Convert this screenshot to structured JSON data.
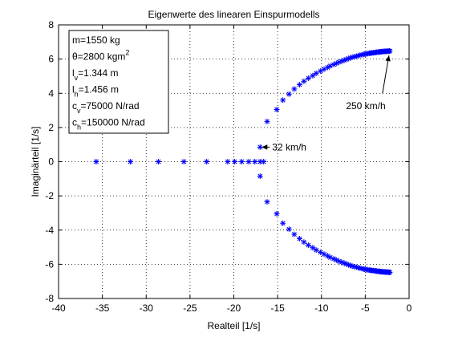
{
  "chart_data": {
    "type": "scatter",
    "title": "Eigenwerte des linearen Einspurmodells",
    "xlabel": "Realteil [1/s]",
    "ylabel": "Imaginärteil [1/s]",
    "xlim": [
      -40,
      0
    ],
    "ylim": [
      -8,
      8
    ],
    "xticks": [
      -40,
      -35,
      -30,
      -25,
      -20,
      -15,
      -10,
      -5,
      0
    ],
    "yticks": [
      -8,
      -6,
      -4,
      -2,
      0,
      2,
      4,
      6,
      8
    ],
    "grid": true,
    "marker": "*",
    "marker_color": "#0000ff",
    "real_eigenvalues_x": [
      -35.7,
      -31.8,
      -28.6,
      -25.7,
      -23.1,
      -20.7,
      -19.9,
      -19.1,
      -18.3,
      -17.6,
      -17.0,
      -16.6
    ],
    "upper_branch": {
      "x": [
        -17.0,
        -16.2,
        -15.1,
        -14.4,
        -13.7,
        -13.1,
        -12.5,
        -12.0,
        -11.5,
        -11.0,
        -10.6,
        -10.1,
        -9.7,
        -9.3,
        -9.0,
        -8.6,
        -8.3,
        -8.0,
        -7.7,
        -7.4,
        -7.2,
        -6.9,
        -6.7,
        -6.5,
        -6.2,
        -6.0,
        -5.8,
        -5.6,
        -5.4,
        -5.2,
        -5.05,
        -4.9,
        -4.7,
        -4.55,
        -4.4,
        -4.25,
        -4.1,
        -3.95,
        -3.8,
        -3.7,
        -3.55,
        -3.45,
        -3.35,
        -3.25,
        -3.15,
        -3.05,
        -2.95,
        -2.85,
        -2.75,
        -2.65,
        -2.55,
        -2.45,
        -2.35,
        -2.25,
        -2.2
      ],
      "y": [
        0.85,
        2.35,
        3.05,
        3.6,
        3.95,
        4.25,
        4.5,
        4.7,
        4.88,
        5.03,
        5.17,
        5.3,
        5.41,
        5.51,
        5.6,
        5.68,
        5.75,
        5.82,
        5.88,
        5.93,
        5.98,
        6.03,
        6.07,
        6.11,
        6.14,
        6.17,
        6.2,
        6.23,
        6.25,
        6.27,
        6.29,
        6.31,
        6.32,
        6.34,
        6.35,
        6.36,
        6.37,
        6.38,
        6.39,
        6.4,
        6.41,
        6.41,
        6.42,
        6.43,
        6.43,
        6.44,
        6.44,
        6.45,
        6.45,
        6.45,
        6.46,
        6.46,
        6.46,
        6.47,
        6.47
      ]
    },
    "lower_branch_note_mirrored": true,
    "params_box": {
      "lines": [
        {
          "main": "m=1550 kg",
          "sub": "",
          "sup": ""
        },
        {
          "main": "θ=2800 kgm",
          "sub": "",
          "sup": "2"
        },
        {
          "main": "l",
          "sub": "v",
          "rest": "=1.344 m",
          "sup": ""
        },
        {
          "main": "l",
          "sub": "h",
          "rest": "=1.456 m",
          "sup": ""
        },
        {
          "main": "c",
          "sub": "v",
          "rest": "=75000 N/rad",
          "sup": ""
        },
        {
          "main": "c",
          "sub": "h",
          "rest": "=150000 N/rad",
          "sup": ""
        }
      ]
    },
    "annotations": [
      {
        "text": "32 km/h",
        "point": [
          -17.0,
          0.85
        ],
        "text_at": [
          -15.9,
          0.85
        ]
      },
      {
        "text": "250 km/h",
        "point": [
          -2.3,
          6.4
        ],
        "text_at": [
          -7.2,
          3.25
        ]
      }
    ]
  }
}
